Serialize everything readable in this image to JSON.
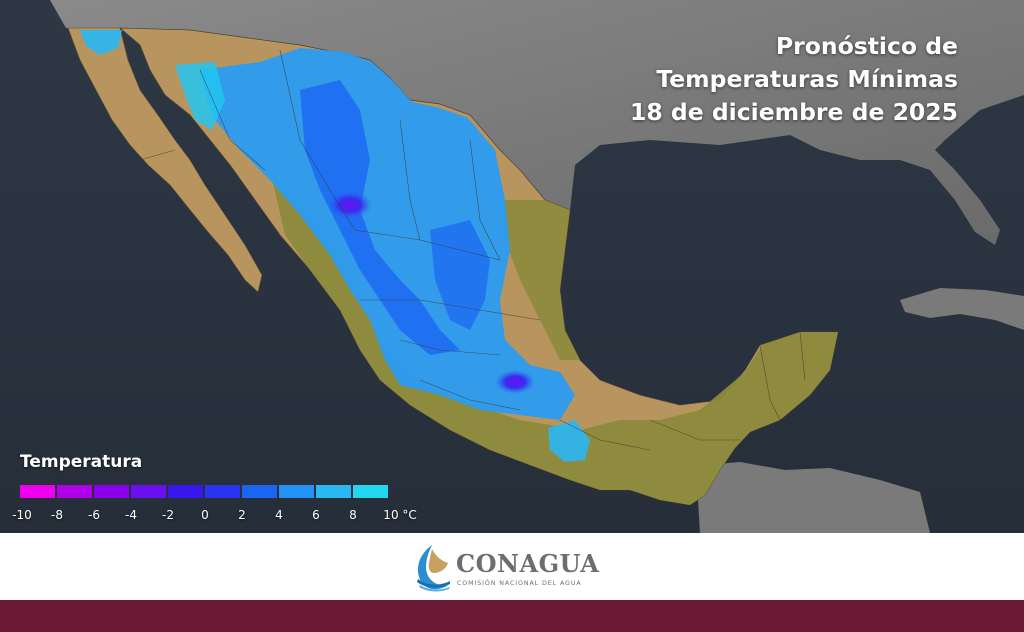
{
  "title": {
    "line1": "Pronóstico de",
    "line2": "Temperaturas Mínimas",
    "line3": "18 de diciembre de 2025"
  },
  "legend": {
    "title": "Temperatura",
    "unit": "°C",
    "ticks": [
      "-10",
      "-8",
      "-6",
      "-4",
      "-2",
      "0",
      "2",
      "4",
      "6",
      "8",
      "10 °C"
    ],
    "colors": [
      "#ee00ee",
      "#b000e8",
      "#8a00ea",
      "#6a10f0",
      "#3a16ee",
      "#2a34f0",
      "#1a66f2",
      "#2292f4",
      "#28b8f4",
      "#22d6f0"
    ]
  },
  "map": {
    "land_color": "#b8955e",
    "warm_land_color": "#8c8a3c",
    "ocean_color": "#2b3540",
    "cold_color": "#2a9cf2"
  },
  "logo": {
    "name": "CONAGUA",
    "subtitle": "COMISIÓN NACIONAL DEL AGUA",
    "color": "#6b6e70"
  },
  "footer": {
    "color": "#6a1a34"
  }
}
